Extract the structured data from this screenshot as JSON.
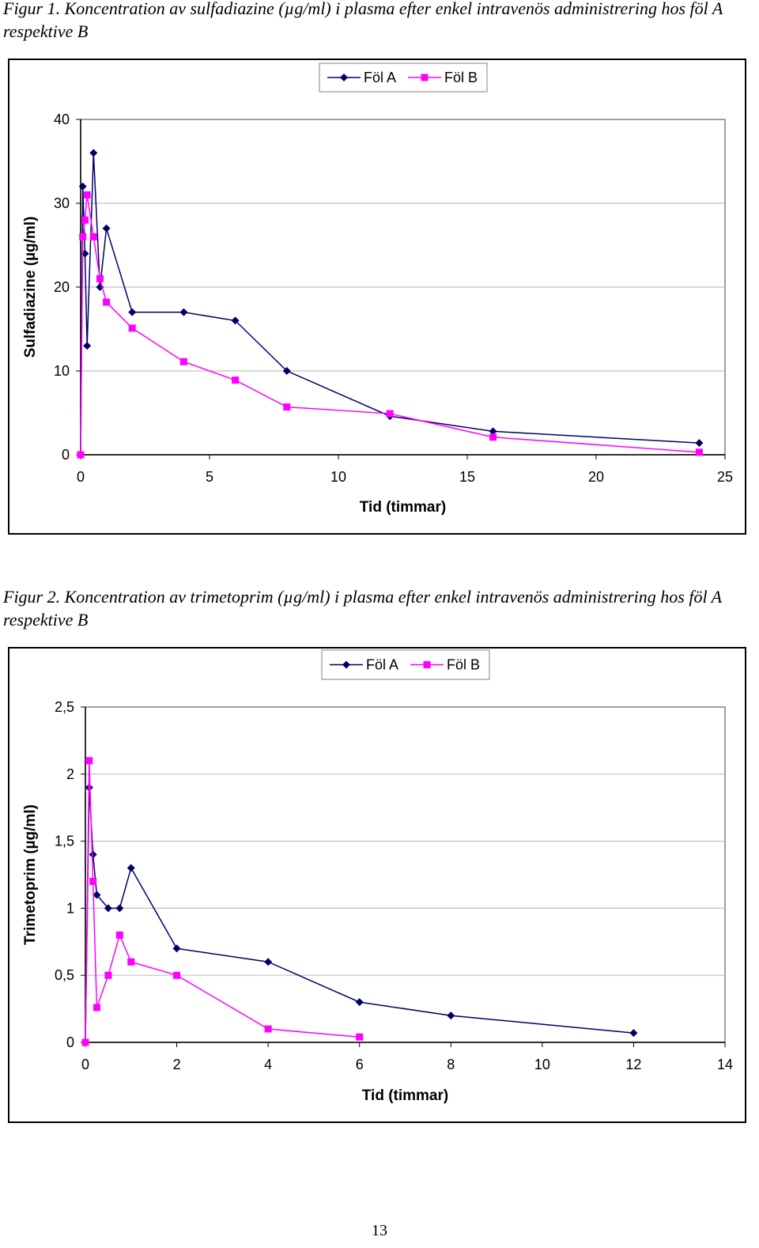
{
  "figures": [
    {
      "caption": "Figur 1. Koncentration av sulfadiazine (µg/ml) i plasma efter enkel intravenös administrering hos föl A respektive B"
    },
    {
      "caption": "Figur 2. Koncentration av trimetoprim (µg/ml) i plasma efter enkel intravenös administrering hos föl A respektive B"
    }
  ],
  "page_number": "13",
  "colors": {
    "fol_a": "#000066",
    "fol_b": "#ff00ff",
    "grid": "#c0c0c0",
    "plot_border": "#808080"
  },
  "chart_data": [
    {
      "type": "line",
      "xlabel": "Tid (timmar)",
      "ylabel": "Sulfadiazine (µg/ml)",
      "xlim": [
        0,
        25
      ],
      "ylim": [
        0,
        40
      ],
      "xticks": [
        0,
        5,
        10,
        15,
        20,
        25
      ],
      "yticks": [
        0,
        10,
        20,
        30,
        40
      ],
      "xtick_labels": [
        "0",
        "5",
        "10",
        "15",
        "20",
        "25"
      ],
      "ytick_labels": [
        "0",
        "10",
        "20",
        "30",
        "40"
      ],
      "grid": "horizontal",
      "legend_position": "top-center",
      "series": [
        {
          "name": "Föl A",
          "color": "#000066",
          "marker": "diamond",
          "x": [
            0,
            0.083,
            0.167,
            0.25,
            0.5,
            0.75,
            1,
            2,
            4,
            6,
            8,
            12,
            16,
            24
          ],
          "y": [
            0,
            32,
            24,
            13,
            36,
            20,
            27,
            17,
            17,
            16,
            10,
            4.6,
            2.8,
            1.4
          ]
        },
        {
          "name": "Föl B",
          "color": "#ff00ff",
          "marker": "square",
          "x": [
            0,
            0.083,
            0.167,
            0.25,
            0.5,
            0.75,
            1,
            2,
            4,
            6,
            8,
            12,
            16,
            24
          ],
          "y": [
            0,
            26,
            28,
            31,
            26,
            21,
            18.2,
            15.1,
            11.1,
            8.9,
            5.7,
            4.9,
            2.1,
            0.3
          ]
        }
      ]
    },
    {
      "type": "line",
      "xlabel": "Tid (timmar)",
      "ylabel": "Trimetoprim (µg/ml)",
      "xlim": [
        0,
        14
      ],
      "ylim": [
        0,
        2.5
      ],
      "xticks": [
        0,
        2,
        4,
        6,
        8,
        10,
        12,
        14
      ],
      "yticks": [
        0,
        0.5,
        1,
        1.5,
        2,
        2.5
      ],
      "xtick_labels": [
        "0",
        "2",
        "4",
        "6",
        "8",
        "10",
        "12",
        "14"
      ],
      "ytick_labels": [
        "0",
        "0,5",
        "1",
        "1,5",
        "2",
        "2,5"
      ],
      "grid": "horizontal",
      "legend_position": "top-center",
      "series": [
        {
          "name": "Föl A",
          "color": "#000066",
          "marker": "diamond",
          "x": [
            0,
            0.083,
            0.167,
            0.25,
            0.5,
            0.75,
            1,
            2,
            4,
            6,
            8,
            12
          ],
          "y": [
            0,
            1.9,
            1.4,
            1.1,
            1.0,
            1.0,
            1.3,
            0.7,
            0.6,
            0.3,
            0.2,
            0.07
          ]
        },
        {
          "name": "Föl B",
          "color": "#ff00ff",
          "marker": "square",
          "x": [
            0,
            0.083,
            0.167,
            0.25,
            0.5,
            0.75,
            1,
            2,
            4,
            6
          ],
          "y": [
            0,
            2.1,
            1.2,
            0.26,
            0.5,
            0.8,
            0.6,
            0.5,
            0.1,
            0.04
          ]
        }
      ]
    }
  ]
}
